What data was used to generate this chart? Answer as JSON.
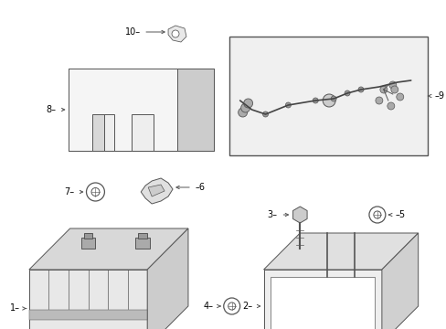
{
  "bg_color": "#ffffff",
  "line_color": "#555555",
  "text_color": "#000000",
  "fig_width": 4.89,
  "fig_height": 3.6,
  "dpi": 100,
  "label_fontsize": 7.0,
  "lw": 0.7
}
